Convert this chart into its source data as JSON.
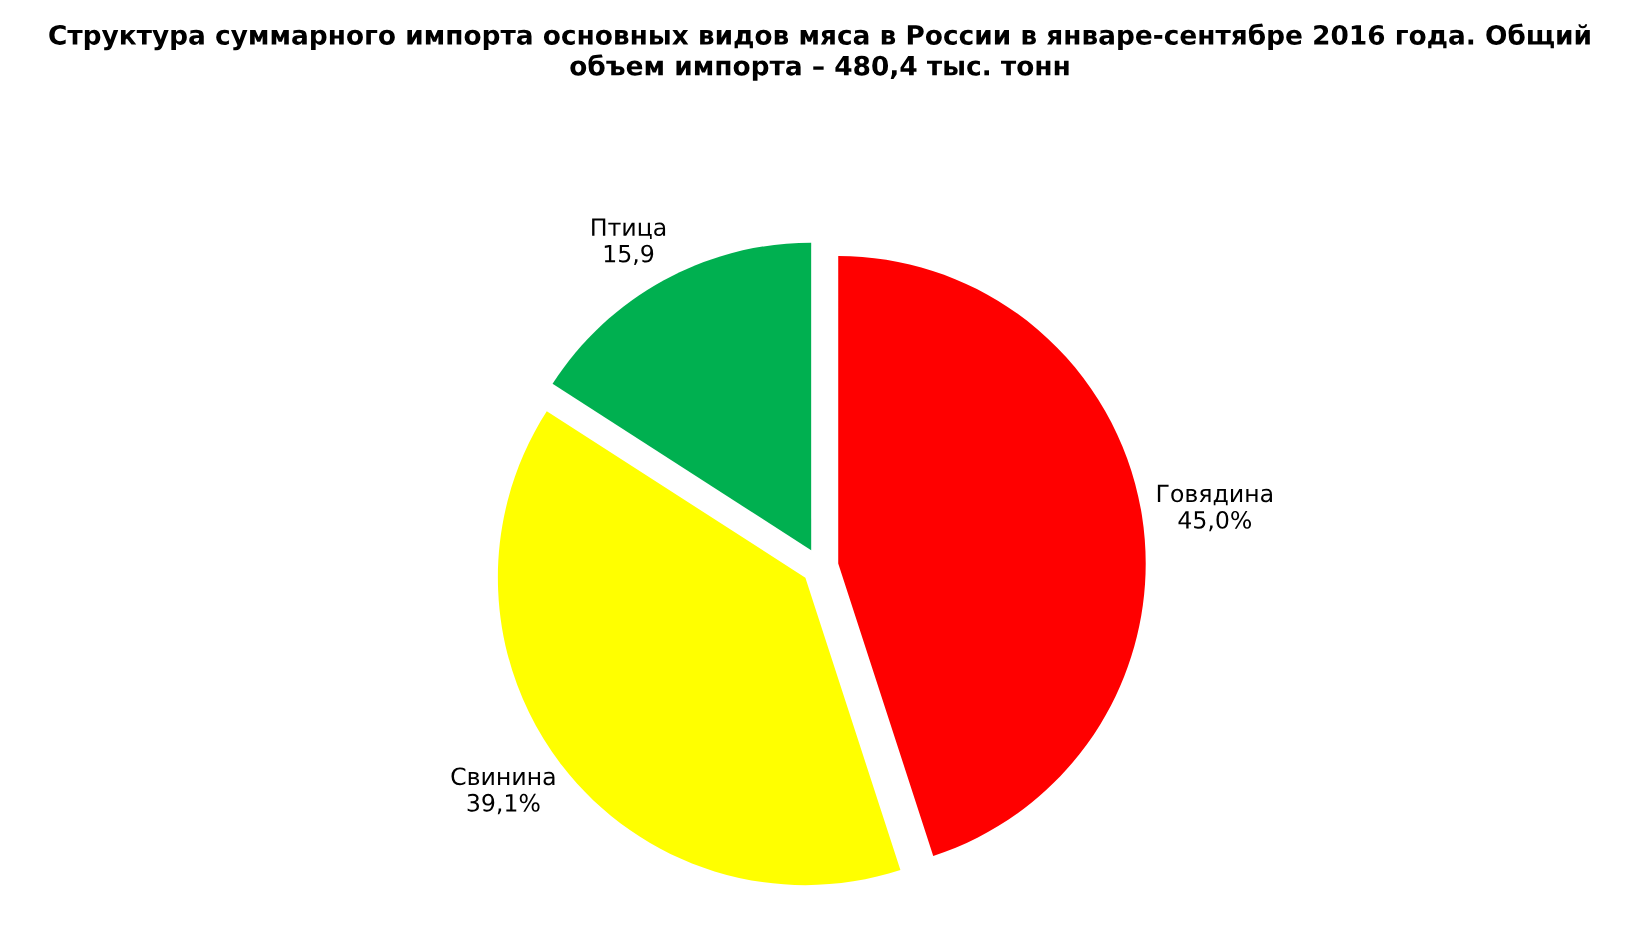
{
  "chart_data": {
    "type": "pie",
    "title": "Структура суммарного импорта основных видов мяса в России в январе-сентябре 2016 года. Общий объем импорта – 480,4 тыс. тонн",
    "categories": [
      "Говядина",
      "Свинина",
      "Птица"
    ],
    "values": [
      45.0,
      39.1,
      15.9
    ],
    "value_labels": [
      "45,0%",
      "39,1%",
      "15,9"
    ],
    "colors": [
      "#ff0000",
      "#ffff00",
      "#00b050"
    ],
    "legend": false
  }
}
